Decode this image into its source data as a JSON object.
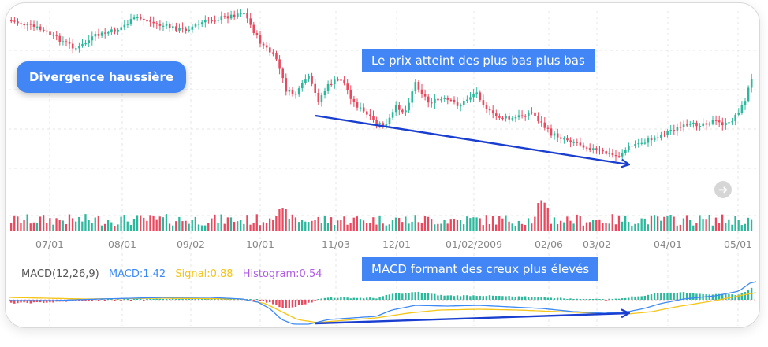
{
  "annotations": {
    "divergence_label": "Divergence haussière",
    "price_note": "Le prix atteint des plus bas plus bas",
    "macd_note": "MACD formant des creux plus élevés"
  },
  "indicator": {
    "name": "MACD(12,26,9)",
    "macd": "MACD:1.42",
    "signal": "Signal:0.88",
    "histogram": "Histogram:0.54"
  },
  "colors": {
    "up": "#2bb89c",
    "down": "#e8495f",
    "arrow": "#1a3fd0",
    "macd_line": "#3d8af7",
    "signal_line": "#f5c518",
    "histogram_label": "#b05ce6",
    "banner": "#4285f4",
    "grid": "#e4e4e4"
  },
  "chart_data": {
    "type": "candlestick",
    "x_tick_labels": [
      "07/01",
      "08/01",
      "09/02",
      "10/01",
      "11/03",
      "12/01",
      "01/02/2009",
      "02/06",
      "03/02",
      "04/01",
      "05/01"
    ],
    "price_close_approx": [
      {
        "x": "07/01",
        "y": 86
      },
      {
        "x": "08/01",
        "y": 82
      },
      {
        "x": "09/02",
        "y": 86
      },
      {
        "x": "10/01",
        "y": 82
      },
      {
        "x": "11/03",
        "y": 60
      },
      {
        "x": "12/01",
        "y": 56
      },
      {
        "x": "01/02/2009",
        "y": 58
      },
      {
        "x": "02/06",
        "y": 50
      },
      {
        "x": "03/02",
        "y": 44
      },
      {
        "x": "04/01",
        "y": 54
      },
      {
        "x": "05/01",
        "y": 64
      }
    ],
    "macd_extremes": {
      "first_trough": "10/01–11/03",
      "second_trough": "02/06–03/02"
    },
    "nav_icon": "arrow-right-circle-icon"
  }
}
